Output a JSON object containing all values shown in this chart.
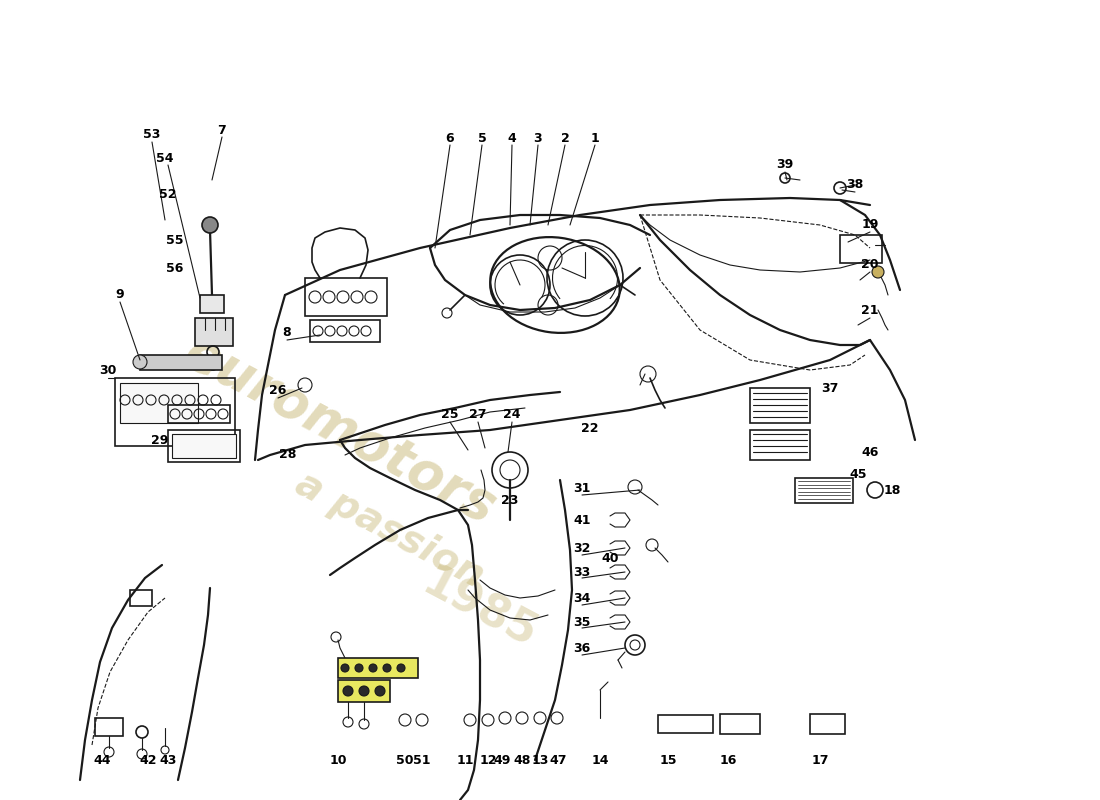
{
  "bg_color": "#ffffff",
  "line_color": "#1a1a1a",
  "label_color": "#000000",
  "label_fontsize": 9,
  "wm_color1": "#c8b878",
  "wm_color2": "#b8a868",
  "figsize": [
    11.0,
    8.0
  ],
  "dpi": 100
}
